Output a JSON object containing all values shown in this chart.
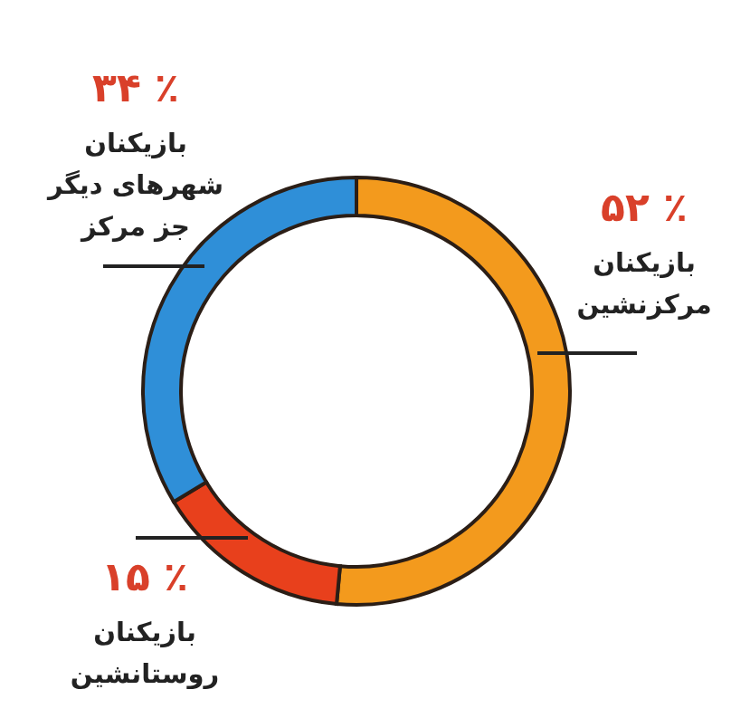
{
  "chart_data": {
    "type": "donut",
    "categories": [
      "بازیکنان\nمرکزنشین",
      "بازیکنان\nروستانشین",
      "بازیکنان\nشهرهای دیگر\nجز مرکز"
    ],
    "values": [
      52,
      15,
      34
    ],
    "colors": [
      "#f39a1d",
      "#e8401c",
      "#2f8fd8"
    ],
    "value_labels": [
      "٪ ۵۲",
      "٪ ۱۵",
      "٪ ۳۴"
    ],
    "legend": false
  }
}
